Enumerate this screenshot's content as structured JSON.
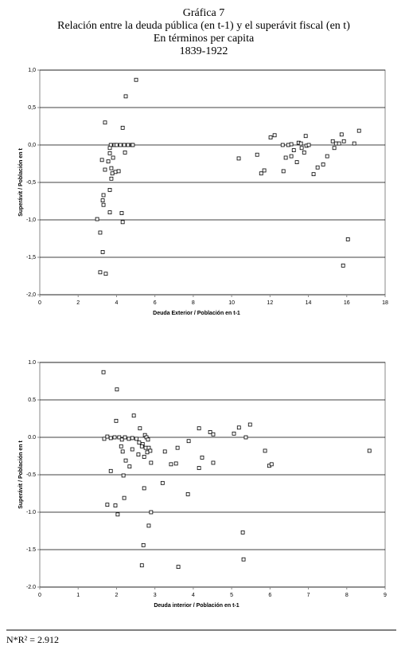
{
  "title": [
    "Gráfica 7",
    "Relación entre la deuda pública (en t-1) y el superávit fiscal (en t)",
    "En términos per capita",
    "1839-1922"
  ],
  "chart_data": [
    {
      "type": "scatter",
      "x_label": "Deuda Exterior / Población en t-1",
      "y_label": "Superávit / Población en t",
      "color": "#000000",
      "grid": true,
      "x": [
        5.02,
        4.48,
        3.4,
        4.32,
        3.7,
        3.9,
        4.0,
        4.2,
        4.4,
        4.6,
        4.8,
        4.85,
        3.65,
        3.65,
        4.44,
        3.24,
        3.57,
        3.82,
        3.73,
        3.4,
        4.11,
        3.94,
        3.78,
        3.73,
        3.65,
        3.32,
        3.28,
        3.32,
        3.65,
        4.27,
        2.99,
        4.32,
        3.15,
        3.28,
        3.15,
        3.44,
        10.37,
        11.33,
        11.54,
        11.7,
        12.03,
        12.24,
        12.66,
        12.7,
        12.82,
        12.95,
        13.11,
        13.24,
        13.49,
        13.61,
        13.65,
        13.4,
        13.11,
        13.78,
        13.86,
        13.9,
        14.02,
        14.27,
        14.48,
        14.77,
        14.98,
        15.27,
        15.35,
        15.44,
        15.6,
        15.73,
        15.85,
        16.06,
        15.81,
        16.39,
        16.64
      ],
      "values": [
        0.87,
        0.65,
        0.3,
        0.23,
        0,
        0,
        0,
        0,
        0,
        0,
        0,
        0,
        -0.04,
        -0.11,
        -0.1,
        -0.2,
        -0.22,
        -0.17,
        -0.31,
        -0.33,
        -0.35,
        -0.36,
        -0.38,
        -0.45,
        -0.6,
        -0.67,
        -0.74,
        -0.8,
        -0.9,
        -0.91,
        -0.99,
        -1.03,
        -1.17,
        -1.43,
        -1.7,
        -1.72,
        -0.18,
        -0.13,
        -0.38,
        -0.34,
        0.1,
        0.13,
        0,
        -0.35,
        -0.17,
        0,
        0.01,
        -0.07,
        0.03,
        0.02,
        -0.04,
        -0.23,
        -0.15,
        -0.1,
        0.12,
        -0.01,
        0,
        -0.39,
        -0.3,
        -0.26,
        -0.15,
        0.05,
        -0.04,
        0.02,
        0.02,
        0.14,
        0.05,
        -1.26,
        -1.61,
        0.02,
        0.19
      ],
      "xlim": [
        0,
        18
      ],
      "xticks": [
        0,
        2,
        4,
        6,
        8,
        10,
        12,
        14,
        16,
        18
      ],
      "ylim": [
        -2,
        1
      ],
      "yticks": [
        {
          "value": 1,
          "label": "1,0"
        },
        {
          "value": 0.5,
          "label": "0,5"
        },
        {
          "value": 0,
          "label": "0,0"
        },
        {
          "value": -0.5,
          "label": "-0,5"
        },
        {
          "value": -1,
          "label": "-1,0"
        },
        {
          "value": -1.5,
          "label": "-1,5"
        },
        {
          "value": -2,
          "label": "-2,0"
        }
      ]
    },
    {
      "type": "scatter",
      "x_label": "Deuda interior / Población en t-1",
      "y_label": "Superávit / Población en t",
      "color": "#000000",
      "grid": true,
      "x": [
        1.66,
        2.01,
        2.45,
        1.99,
        2.61,
        1.68,
        1.76,
        1.85,
        1.95,
        2.07,
        2.14,
        2.22,
        2.32,
        2.41,
        2.52,
        2.59,
        2.68,
        2.74,
        2.78,
        2.82,
        2.12,
        2.16,
        2.66,
        2.76,
        2.84,
        2.41,
        2.57,
        2.8,
        2.88,
        2.72,
        2.24,
        2.34,
        2.9,
        1.85,
        2.18,
        3.2,
        2.72,
        3.86,
        2.2,
        1.76,
        1.97,
        2.03,
        2.9,
        2.84,
        2.7,
        2.66,
        3.61,
        3.26,
        3.42,
        3.55,
        3.59,
        3.88,
        4.15,
        4.23,
        4.15,
        4.44,
        4.52,
        4.52,
        5.06,
        5.19,
        5.37,
        5.48,
        5.87,
        5.98,
        6.04,
        5.29,
        5.31,
        8.59
      ],
      "values": [
        0.87,
        0.64,
        0.29,
        0.22,
        0.12,
        -0.02,
        0.01,
        -0.01,
        0,
        0,
        -0.03,
        0,
        -0.02,
        -0.01,
        -0.02,
        -0.07,
        -0.09,
        0.03,
        0,
        -0.03,
        -0.12,
        -0.19,
        -0.12,
        -0.14,
        -0.14,
        -0.16,
        -0.23,
        -0.2,
        -0.18,
        -0.26,
        -0.31,
        -0.39,
        -0.34,
        -0.45,
        -0.51,
        -0.61,
        -0.68,
        -0.76,
        -0.81,
        -0.9,
        -0.91,
        -1.03,
        -1.0,
        -1.18,
        -1.44,
        -1.71,
        -1.73,
        -0.19,
        -0.36,
        -0.35,
        -0.14,
        -0.05,
        0.12,
        -0.27,
        -0.41,
        0.07,
        0.04,
        -0.34,
        0.05,
        0.13,
        0,
        0.17,
        -0.18,
        -0.38,
        -0.36,
        -1.27,
        -1.63,
        -0.18
      ],
      "xlim": [
        0,
        9
      ],
      "xticks": [
        0,
        1,
        2,
        3,
        4,
        5,
        6,
        7,
        8,
        9
      ],
      "ylim": [
        -2,
        1
      ],
      "yticks": [
        {
          "value": 1,
          "label": "1.0"
        },
        {
          "value": 0.5,
          "label": "0.5"
        },
        {
          "value": 0,
          "label": "0.0"
        },
        {
          "value": -0.5,
          "label": "-0.5"
        },
        {
          "value": -1,
          "label": "-1.0"
        },
        {
          "value": -1.5,
          "label": "-1.5"
        },
        {
          "value": -2,
          "label": "-2.0"
        }
      ]
    }
  ],
  "footnote": "N*R² = 2.912"
}
